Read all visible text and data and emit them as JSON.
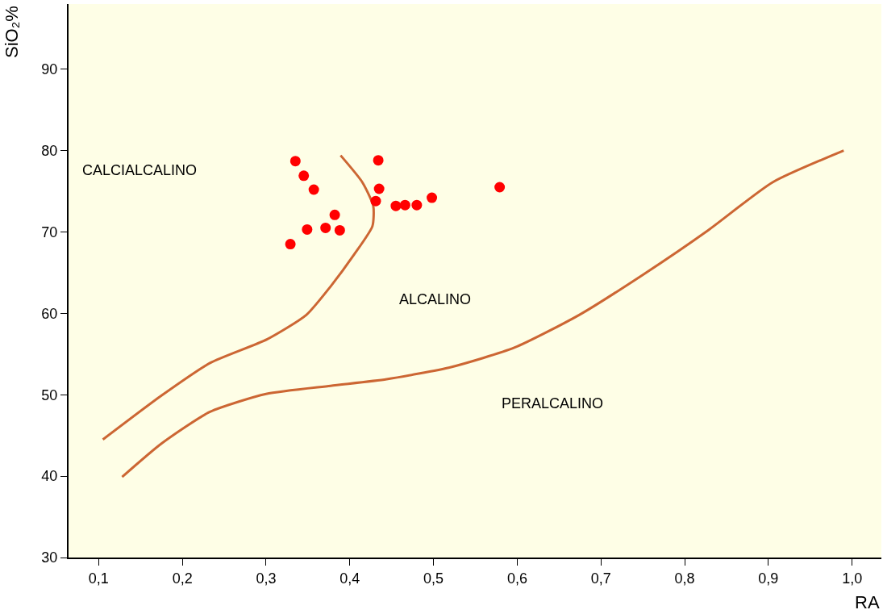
{
  "chart_data": {
    "type": "scatter",
    "xlabel": "RA",
    "ylabel": "SiO₂%",
    "xlim": [
      0.064,
      1.035
    ],
    "ylim": [
      30,
      98
    ],
    "xticks": [
      {
        "value": 0.1,
        "label": "0,1"
      },
      {
        "value": 0.2,
        "label": "0,2"
      },
      {
        "value": 0.3,
        "label": "0,3"
      },
      {
        "value": 0.4,
        "label": "0,4"
      },
      {
        "value": 0.5,
        "label": "0,5"
      },
      {
        "value": 0.6,
        "label": "0,6"
      },
      {
        "value": 0.7,
        "label": "0,7"
      },
      {
        "value": 0.8,
        "label": "0,8"
      },
      {
        "value": 0.9,
        "label": "0,9"
      },
      {
        "value": 1.0,
        "label": "1,0"
      }
    ],
    "yticks": [
      30,
      40,
      50,
      60,
      70,
      80,
      90
    ],
    "grid": false,
    "marker": "circle",
    "series": [
      {
        "color": "#ff0000",
        "x": [
          0.335,
          0.345,
          0.357,
          0.434,
          0.435,
          0.431,
          0.455,
          0.466,
          0.48,
          0.498,
          0.579,
          0.382,
          0.349,
          0.371,
          0.388,
          0.329
        ],
        "values": [
          78.7,
          76.9,
          75.2,
          78.8,
          75.3,
          73.8,
          73.2,
          73.3,
          73.3,
          74.2,
          75.5,
          72.1,
          70.3,
          70.5,
          70.2,
          68.5
        ]
      },
      {
        "type": "line",
        "marker": "none",
        "color": "#cc6633",
        "x": [
          0.105,
          0.175,
          0.233,
          0.301,
          0.348,
          0.377,
          0.405,
          0.427,
          0.428,
          0.415,
          0.389
        ],
        "values": [
          44.5,
          49.9,
          53.9,
          56.8,
          59.8,
          63.3,
          67.2,
          70.7,
          73.2,
          76.1,
          79.4
        ]
      },
      {
        "type": "line",
        "marker": "none",
        "color": "#cc6633",
        "x": [
          0.128,
          0.175,
          0.233,
          0.3,
          0.377,
          0.444,
          0.521,
          0.597,
          0.674,
          0.751,
          0.828,
          0.905,
          0.99
        ],
        "values": [
          39.9,
          44.0,
          47.9,
          50.1,
          51.1,
          51.9,
          53.4,
          55.8,
          59.8,
          64.8,
          70.2,
          76.1,
          80.0
        ]
      }
    ],
    "annotations": [
      "CALCIALCALINO",
      "ALCALINO",
      "PERALCALINO"
    ]
  }
}
